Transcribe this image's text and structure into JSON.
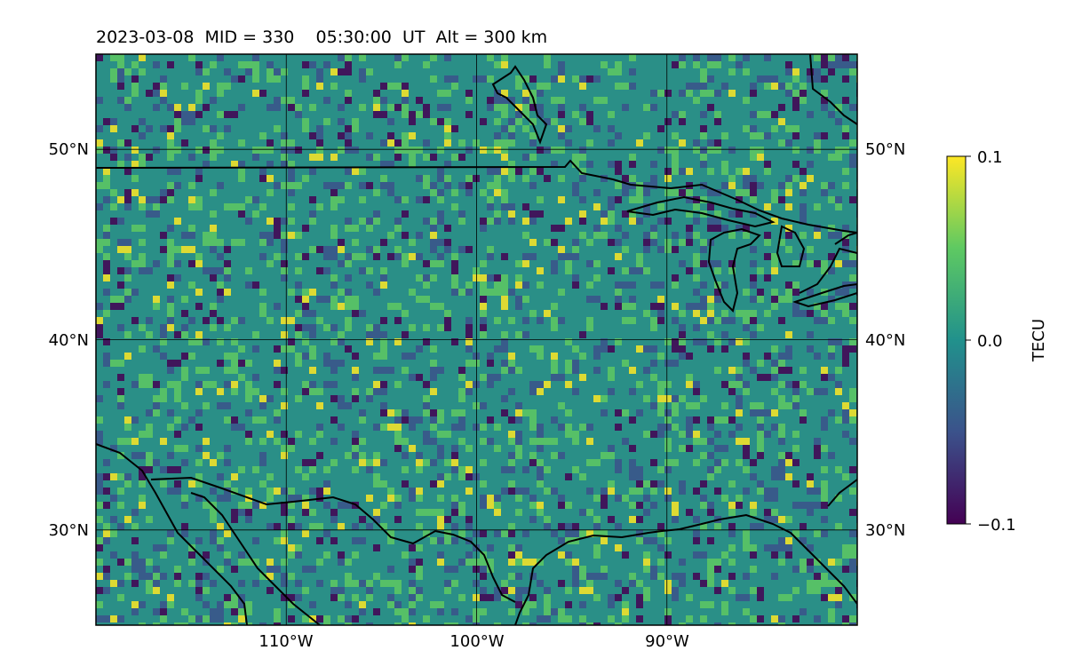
{
  "title": "2023-03-08  MID = 330    05:30:00  UT  Alt = 300 km",
  "map": {
    "lon_range": [
      -120,
      -80
    ],
    "lat_range": [
      25,
      55
    ],
    "lon_ticks": [
      {
        "value": -110,
        "label": "110°W"
      },
      {
        "value": -100,
        "label": "100°W"
      },
      {
        "value": -90,
        "label": "90°W"
      }
    ],
    "lat_ticks": [
      {
        "value": 30,
        "label": "30°N"
      },
      {
        "value": 40,
        "label": "40°N"
      },
      {
        "value": 50,
        "label": "50°N"
      }
    ],
    "gridlines": true
  },
  "colorbar": {
    "label": "TECU",
    "colormap": "viridis",
    "range": [
      -0.1,
      0.1
    ],
    "ticks": [
      {
        "value": 0.1,
        "label": "0.1"
      },
      {
        "value": 0.0,
        "label": "0.0"
      },
      {
        "value": -0.1,
        "label": "−0.1"
      }
    ],
    "colors": [
      "#440154",
      "#3b528b",
      "#21918c",
      "#5ec962",
      "#fde725"
    ]
  }
}
